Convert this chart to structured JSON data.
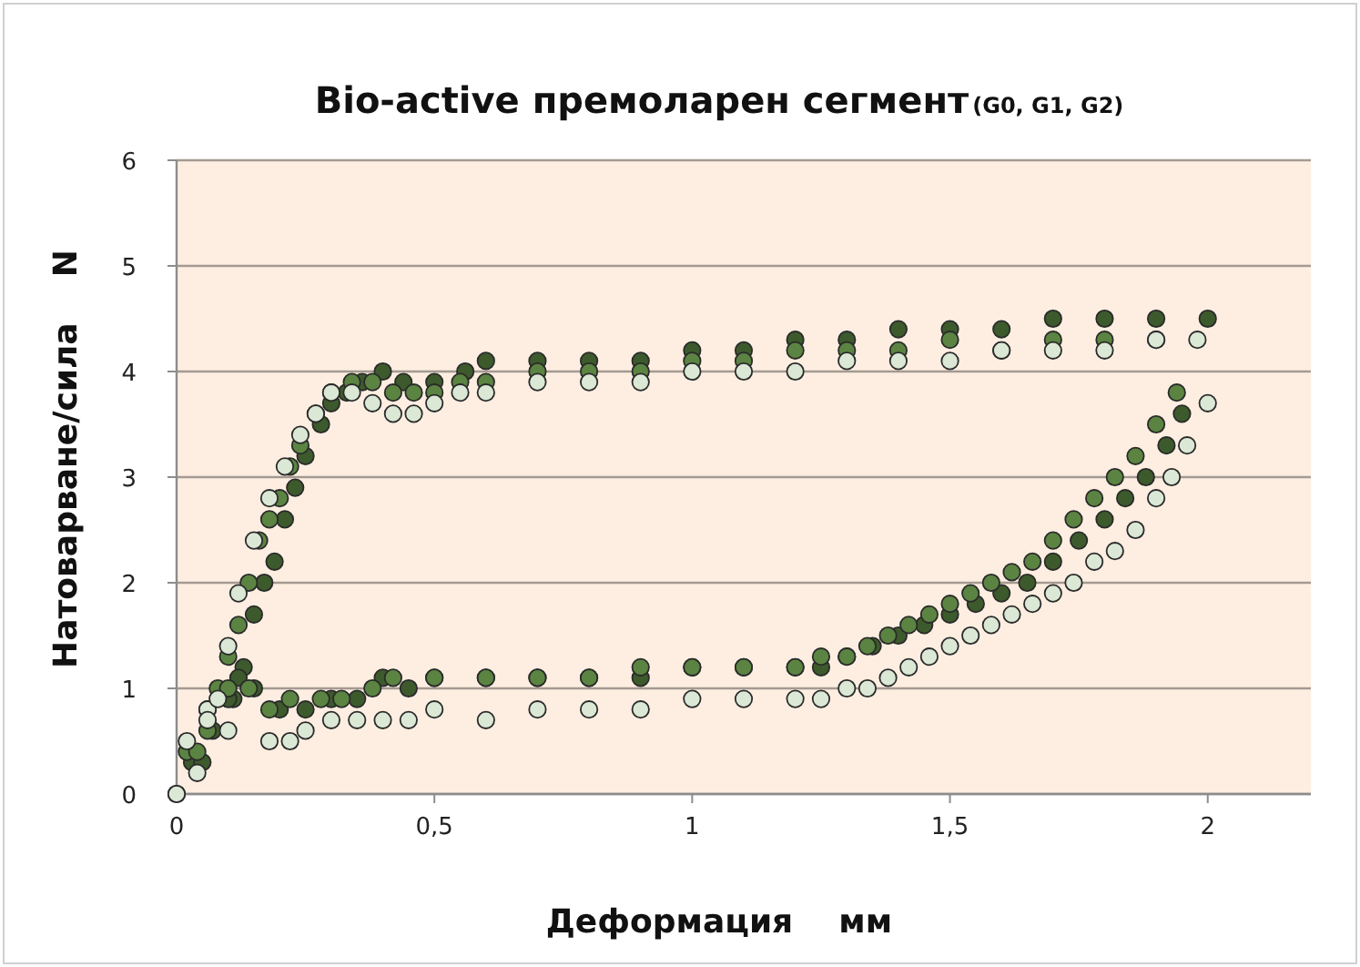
{
  "chart_data": {
    "type": "scatter",
    "title": "Bio-active премоларен сегмент",
    "subtitle": "(G0, G1, G2)",
    "xlabel": "Деформация    мм",
    "ylabel": "Натоварване/сила    N",
    "xlim": [
      0,
      2.2
    ],
    "xticks": [
      0,
      {
        "value": 0.5,
        "label": "0,5"
      },
      1,
      {
        "value": 1.5,
        "label": "1,5"
      },
      2
    ],
    "ylim": [
      0,
      6
    ],
    "yticks": [
      0,
      1,
      2,
      3,
      4,
      5,
      6
    ],
    "grid": "y",
    "marker": "circle",
    "series": [
      {
        "color": "#3d5a2c",
        "x": [
          0,
          0.03,
          0.05,
          0.07,
          0.11,
          0.13,
          0.15,
          0.17,
          0.19,
          0.21,
          0.23,
          0.25,
          0.28,
          0.3,
          0.33,
          0.36,
          0.4,
          0.44,
          0.5,
          0.56,
          0.6,
          0.7,
          0.8,
          0.9,
          1.0,
          1.1,
          1.2,
          1.3,
          1.4,
          1.5,
          1.6,
          1.7,
          1.8,
          1.9,
          2.0,
          1.95,
          1.92,
          1.88,
          1.84,
          1.8,
          1.75,
          1.7,
          1.65,
          1.6,
          1.55,
          1.5,
          1.45,
          1.4,
          1.35,
          1.3,
          1.25,
          1.2,
          1.1,
          1.0,
          0.9,
          0.8,
          0.7,
          0.6,
          0.5,
          0.45,
          0.4,
          0.35,
          0.3,
          0.25,
          0.2,
          0.15,
          0.12,
          0.1
        ],
        "values": [
          0,
          0.3,
          0.3,
          0.6,
          0.9,
          1.2,
          1.7,
          2.0,
          2.2,
          2.6,
          2.9,
          3.2,
          3.5,
          3.7,
          3.8,
          3.9,
          4.0,
          3.9,
          3.9,
          4.0,
          4.1,
          4.1,
          4.1,
          4.1,
          4.2,
          4.2,
          4.3,
          4.3,
          4.4,
          4.4,
          4.4,
          4.5,
          4.5,
          4.5,
          4.5,
          3.6,
          3.3,
          3.0,
          2.8,
          2.6,
          2.4,
          2.2,
          2.0,
          1.9,
          1.8,
          1.7,
          1.6,
          1.5,
          1.4,
          1.3,
          1.2,
          1.2,
          1.2,
          1.2,
          1.1,
          1.1,
          1.1,
          1.1,
          1.1,
          1.0,
          1.1,
          0.9,
          0.9,
          0.8,
          0.8,
          1.0,
          1.1,
          0.9
        ]
      },
      {
        "color": "#5b8442",
        "x": [
          0.02,
          0.04,
          0.06,
          0.08,
          0.1,
          0.12,
          0.14,
          0.16,
          0.18,
          0.2,
          0.22,
          0.24,
          0.27,
          0.3,
          0.34,
          0.38,
          0.42,
          0.46,
          0.5,
          0.55,
          0.6,
          0.7,
          0.8,
          0.9,
          1.0,
          1.1,
          1.2,
          1.3,
          1.4,
          1.5,
          1.6,
          1.7,
          1.8,
          1.9,
          1.94,
          1.9,
          1.86,
          1.82,
          1.78,
          1.74,
          1.7,
          1.66,
          1.62,
          1.58,
          1.54,
          1.5,
          1.46,
          1.42,
          1.38,
          1.34,
          1.3,
          1.25,
          1.2,
          1.1,
          1.0,
          0.9,
          0.8,
          0.7,
          0.6,
          0.5,
          0.42,
          0.38,
          0.32,
          0.28,
          0.22,
          0.18,
          0.14,
          0.1,
          0.06
        ],
        "values": [
          0.4,
          0.4,
          0.6,
          1.0,
          1.3,
          1.6,
          2.0,
          2.4,
          2.6,
          2.8,
          3.1,
          3.3,
          3.6,
          3.8,
          3.9,
          3.9,
          3.8,
          3.8,
          3.8,
          3.9,
          3.9,
          4.0,
          4.0,
          4.0,
          4.1,
          4.1,
          4.2,
          4.2,
          4.2,
          4.3,
          4.2,
          4.3,
          4.3,
          4.3,
          3.8,
          3.5,
          3.2,
          3.0,
          2.8,
          2.6,
          2.4,
          2.2,
          2.1,
          2.0,
          1.9,
          1.8,
          1.7,
          1.6,
          1.5,
          1.4,
          1.3,
          1.3,
          1.2,
          1.2,
          1.2,
          1.2,
          1.1,
          1.1,
          1.1,
          1.1,
          1.1,
          1.0,
          0.9,
          0.9,
          0.9,
          0.8,
          1.0,
          1.0,
          0.8
        ]
      },
      {
        "color": "#dce8d6",
        "x": [
          0,
          0.02,
          0.04,
          0.06,
          0.08,
          0.1,
          0.12,
          0.15,
          0.18,
          0.21,
          0.24,
          0.27,
          0.3,
          0.34,
          0.38,
          0.42,
          0.46,
          0.5,
          0.55,
          0.6,
          0.7,
          0.8,
          0.9,
          1.0,
          1.1,
          1.2,
          1.3,
          1.4,
          1.5,
          1.6,
          1.7,
          1.8,
          1.9,
          1.98,
          2.0,
          1.96,
          1.93,
          1.9,
          1.86,
          1.82,
          1.78,
          1.74,
          1.7,
          1.66,
          1.62,
          1.58,
          1.54,
          1.5,
          1.46,
          1.42,
          1.38,
          1.34,
          1.3,
          1.25,
          1.2,
          1.1,
          1.0,
          0.9,
          0.8,
          0.7,
          0.6,
          0.5,
          0.45,
          0.4,
          0.35,
          0.3,
          0.25,
          0.22,
          0.18,
          0.1,
          0.06
        ],
        "values": [
          0,
          0.5,
          0.2,
          0.8,
          0.9,
          1.4,
          1.9,
          2.4,
          2.8,
          3.1,
          3.4,
          3.6,
          3.8,
          3.8,
          3.7,
          3.6,
          3.6,
          3.7,
          3.8,
          3.8,
          3.9,
          3.9,
          3.9,
          4.0,
          4.0,
          4.0,
          4.1,
          4.1,
          4.1,
          4.2,
          4.2,
          4.2,
          4.3,
          4.3,
          3.7,
          3.3,
          3.0,
          2.8,
          2.5,
          2.3,
          2.2,
          2.0,
          1.9,
          1.8,
          1.7,
          1.6,
          1.5,
          1.4,
          1.3,
          1.2,
          1.1,
          1.0,
          1.0,
          0.9,
          0.9,
          0.9,
          0.9,
          0.8,
          0.8,
          0.8,
          0.7,
          0.8,
          0.7,
          0.7,
          0.7,
          0.7,
          0.6,
          0.5,
          0.5,
          0.6,
          0.7
        ]
      }
    ]
  }
}
